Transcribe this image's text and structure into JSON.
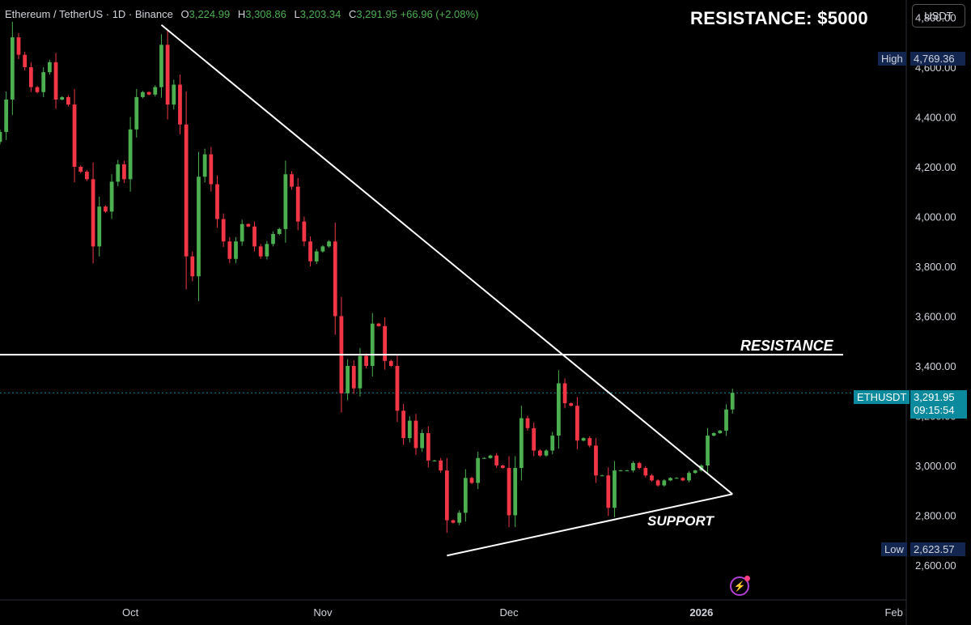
{
  "header": {
    "symbol": "Ethereum / TetherUS · 1D · Binance",
    "o_label": "O",
    "o_value": "3,224.99",
    "h_label": "H",
    "h_value": "3,308.86",
    "l_label": "L",
    "l_value": "3,203.34",
    "c_label": "C",
    "c_value": "3,291.95",
    "change": "+66.96 (+2.08%)"
  },
  "headline": "RESISTANCE: $5000",
  "currency_button": "USDT",
  "high_badge": {
    "label": "High",
    "value": "4,769.36"
  },
  "low_badge": {
    "label": "Low",
    "value": "2,623.57"
  },
  "price_badge": {
    "label": "ETHUSDT",
    "value": "3,291.95",
    "countdown": "09:15:54"
  },
  "annotations": {
    "resistance": "RESISTANCE",
    "support": "SUPPORT"
  },
  "colors": {
    "up": "#26a69a",
    "down": "#ef5350",
    "up_bright": "#4caf50",
    "down_bright": "#f23645",
    "lines": "#ffffff",
    "accent": "#0b8a9e"
  },
  "chart_data": {
    "type": "candlestick",
    "symbol": "ETHUSDT",
    "interval": "1D",
    "y_ticks": [
      4800,
      4600,
      4400,
      4200,
      4000,
      3800,
      3600,
      3400,
      3200,
      3000,
      2800,
      2600
    ],
    "y_tick_labels": [
      "4,800.00",
      "4,600.00",
      "4,400.00",
      "4,200.00",
      "4,000.00",
      "3,800.00",
      "3,600.00",
      "3,400.00",
      "3,200.00",
      "3,000.00",
      "2,800.00",
      "2,600.00"
    ],
    "x_tick_labels": [
      {
        "label": "Oct",
        "date": "2025-10-01"
      },
      {
        "label": "Nov",
        "date": "2025-11-01"
      },
      {
        "label": "Dec",
        "date": "2025-12-01"
      },
      {
        "label": "2026",
        "date": "2026-01-01"
      },
      {
        "label": "Feb",
        "date": "2026-02-01"
      }
    ],
    "ylim": [
      2460,
      4870
    ],
    "xlim": [
      "2025-09-10",
      "2026-02-03"
    ],
    "grid": false,
    "closes": [
      [
        "2025-09-10",
        4340
      ],
      [
        "2025-09-11",
        4470
      ],
      [
        "2025-09-12",
        4720
      ],
      [
        "2025-09-13",
        4650
      ],
      [
        "2025-09-14",
        4600
      ],
      [
        "2025-09-15",
        4520
      ],
      [
        "2025-09-16",
        4500
      ],
      [
        "2025-09-17",
        4580
      ],
      [
        "2025-09-18",
        4620
      ],
      [
        "2025-09-19",
        4470
      ],
      [
        "2025-09-20",
        4480
      ],
      [
        "2025-09-21",
        4450
      ],
      [
        "2025-09-22",
        4200
      ],
      [
        "2025-09-23",
        4180
      ],
      [
        "2025-09-24",
        4150
      ],
      [
        "2025-09-25",
        3880
      ],
      [
        "2025-09-26",
        4040
      ],
      [
        "2025-09-27",
        4020
      ],
      [
        "2025-09-28",
        4140
      ],
      [
        "2025-09-29",
        4210
      ],
      [
        "2025-09-30",
        4150
      ],
      [
        "2025-10-01",
        4350
      ],
      [
        "2025-10-02",
        4480
      ],
      [
        "2025-10-03",
        4500
      ],
      [
        "2025-10-04",
        4490
      ],
      [
        "2025-10-05",
        4520
      ],
      [
        "2025-10-06",
        4690
      ],
      [
        "2025-10-07",
        4450
      ],
      [
        "2025-10-08",
        4530
      ],
      [
        "2025-10-09",
        4370
      ],
      [
        "2025-10-10",
        3840
      ],
      [
        "2025-10-11",
        3760
      ],
      [
        "2025-10-12",
        4160
      ],
      [
        "2025-10-13",
        4250
      ],
      [
        "2025-10-14",
        4130
      ],
      [
        "2025-10-15",
        3990
      ],
      [
        "2025-10-16",
        3900
      ],
      [
        "2025-10-17",
        3830
      ],
      [
        "2025-10-18",
        3900
      ],
      [
        "2025-10-19",
        3970
      ],
      [
        "2025-10-20",
        3960
      ],
      [
        "2025-10-21",
        3880
      ],
      [
        "2025-10-22",
        3840
      ],
      [
        "2025-10-23",
        3890
      ],
      [
        "2025-10-24",
        3930
      ],
      [
        "2025-10-25",
        3950
      ],
      [
        "2025-10-26",
        4170
      ],
      [
        "2025-10-27",
        4120
      ],
      [
        "2025-10-28",
        3980
      ],
      [
        "2025-10-29",
        3900
      ],
      [
        "2025-10-30",
        3820
      ],
      [
        "2025-10-31",
        3860
      ],
      [
        "2025-11-01",
        3880
      ],
      [
        "2025-11-02",
        3900
      ],
      [
        "2025-11-03",
        3600
      ],
      [
        "2025-11-04",
        3290
      ],
      [
        "2025-11-05",
        3400
      ],
      [
        "2025-11-06",
        3310
      ],
      [
        "2025-11-07",
        3440
      ],
      [
        "2025-11-08",
        3400
      ],
      [
        "2025-11-09",
        3570
      ],
      [
        "2025-11-10",
        3560
      ],
      [
        "2025-11-11",
        3420
      ],
      [
        "2025-11-12",
        3400
      ],
      [
        "2025-11-13",
        3220
      ],
      [
        "2025-11-14",
        3110
      ],
      [
        "2025-11-15",
        3180
      ],
      [
        "2025-11-16",
        3070
      ],
      [
        "2025-11-17",
        3130
      ],
      [
        "2025-11-18",
        3020
      ],
      [
        "2025-11-19",
        3020
      ],
      [
        "2025-11-20",
        2980
      ],
      [
        "2025-11-21",
        2780
      ],
      [
        "2025-11-22",
        2770
      ],
      [
        "2025-11-23",
        2810
      ],
      [
        "2025-11-24",
        2950
      ],
      [
        "2025-11-25",
        2930
      ],
      [
        "2025-11-26",
        3030
      ],
      [
        "2025-11-27",
        3030
      ],
      [
        "2025-11-28",
        3040
      ],
      [
        "2025-11-29",
        3000
      ],
      [
        "2025-11-30",
        2990
      ],
      [
        "2025-12-01",
        2800
      ],
      [
        "2025-12-02",
        2990
      ],
      [
        "2025-12-03",
        3190
      ],
      [
        "2025-12-04",
        3150
      ],
      [
        "2025-12-05",
        3060
      ],
      [
        "2025-12-06",
        3040
      ],
      [
        "2025-12-07",
        3060
      ],
      [
        "2025-12-08",
        3120
      ],
      [
        "2025-12-09",
        3330
      ],
      [
        "2025-12-10",
        3250
      ],
      [
        "2025-12-11",
        3240
      ],
      [
        "2025-12-12",
        3100
      ],
      [
        "2025-12-13",
        3110
      ],
      [
        "2025-12-14",
        3080
      ],
      [
        "2025-12-15",
        2960
      ],
      [
        "2025-12-16",
        2960
      ],
      [
        "2025-12-17",
        2830
      ],
      [
        "2025-12-18",
        2980
      ],
      [
        "2025-12-19",
        2980
      ],
      [
        "2025-12-20",
        2980
      ],
      [
        "2025-12-21",
        3010
      ],
      [
        "2025-12-22",
        2990
      ],
      [
        "2025-12-23",
        2960
      ],
      [
        "2025-12-24",
        2940
      ],
      [
        "2025-12-25",
        2920
      ],
      [
        "2025-12-26",
        2940
      ],
      [
        "2025-12-27",
        2950
      ],
      [
        "2025-12-28",
        2950
      ],
      [
        "2025-12-29",
        2940
      ],
      [
        "2025-12-30",
        2970
      ],
      [
        "2025-12-31",
        2980
      ],
      [
        "2026-01-01",
        3000
      ],
      [
        "2026-01-02",
        3120
      ],
      [
        "2026-01-03",
        3130
      ],
      [
        "2026-01-04",
        3140
      ],
      [
        "2026-01-05",
        3225
      ],
      [
        "2026-01-06",
        3291.95
      ]
    ],
    "last_price": 3291.95,
    "period_high": 4769.36,
    "period_low": 2623.57,
    "trendlines": [
      {
        "type": "descending-resistance",
        "from": [
          "2025-10-06",
          4770
        ],
        "to": [
          "2026-01-06",
          2885
        ]
      },
      {
        "type": "ascending-support",
        "from": [
          "2025-11-21",
          2638
        ],
        "to": [
          "2026-01-06",
          2885
        ]
      },
      {
        "type": "horizontal-resistance",
        "price": 3445
      }
    ]
  }
}
